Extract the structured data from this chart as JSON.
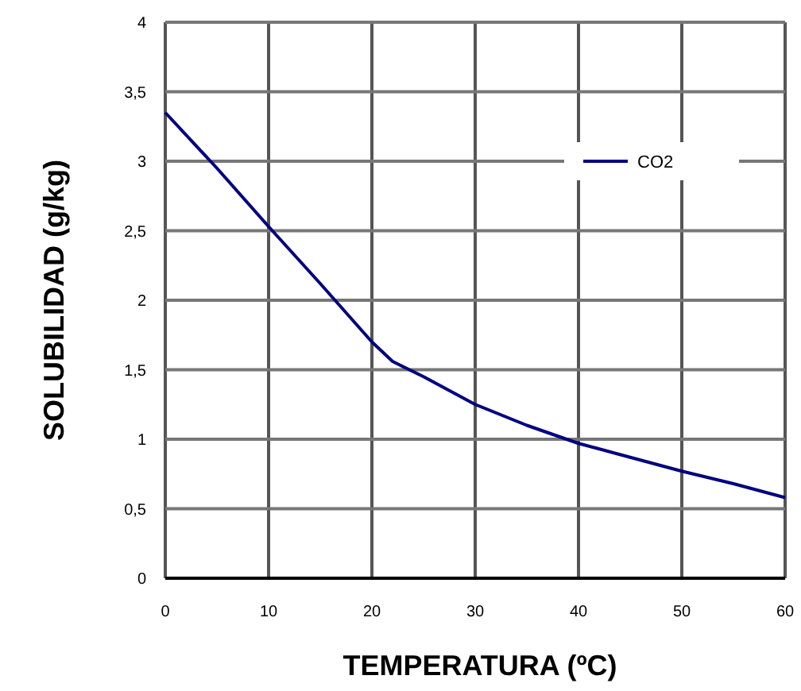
{
  "chart_data": {
    "type": "line",
    "xlabel": "TEMPERATURA (ºC)",
    "ylabel": "SOLUBILIDAD (g/kg)",
    "x": [
      0,
      5,
      10,
      15,
      20,
      22,
      25,
      30,
      35,
      40,
      45,
      50,
      55,
      60
    ],
    "series": [
      {
        "name": "CO2",
        "color": "#000080",
        "values": [
          3.35,
          2.95,
          2.53,
          2.12,
          1.7,
          1.56,
          1.45,
          1.25,
          1.1,
          0.97,
          0.87,
          0.77,
          0.68,
          0.58
        ]
      }
    ],
    "xlim": [
      0,
      60
    ],
    "xticks": [
      0,
      10,
      20,
      30,
      40,
      50,
      60
    ],
    "ylim": [
      0,
      4
    ],
    "yticks": [
      0,
      {
        "value": 0.5,
        "label": "0,5"
      },
      1,
      {
        "value": 1.5,
        "label": "1,5"
      },
      2,
      {
        "value": 2.5,
        "label": "2,5"
      },
      3,
      {
        "value": 3.5,
        "label": "3,5"
      },
      4
    ],
    "grid": true,
    "legend": "right",
    "marker": "none",
    "line_style": "solid"
  }
}
